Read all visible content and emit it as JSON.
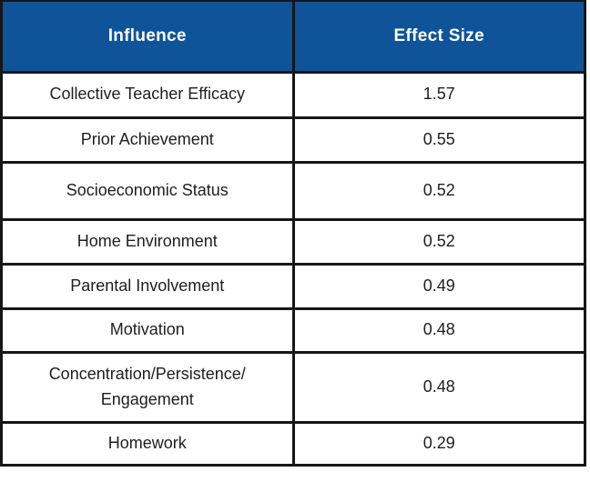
{
  "colors": {
    "header_bg": "#0F5499",
    "header_text": "#FFFFFF",
    "border": "#161616",
    "row_bg": "#FFFFFF",
    "body_text": "#1E1E1E"
  },
  "table": {
    "headers": {
      "influence": "Influence",
      "effect_size": "Effect Size"
    },
    "rows": [
      {
        "influence": "Collective Teacher Efficacy",
        "effect_size": "1.57"
      },
      {
        "influence": "Prior Achievement",
        "effect_size": "0.55"
      },
      {
        "influence": "Socioeconomic Status",
        "effect_size": "0.52"
      },
      {
        "influence": "Home Environment",
        "effect_size": "0.52"
      },
      {
        "influence": "Parental Involvement",
        "effect_size": "0.49"
      },
      {
        "influence": "Motivation",
        "effect_size": "0.48"
      },
      {
        "influence": "Concentration/Persistence/\nEngagement",
        "effect_size": "0.48"
      },
      {
        "influence": "Homework",
        "effect_size": "0.29"
      }
    ]
  },
  "chart_data": {
    "type": "table",
    "columns": [
      "Influence",
      "Effect Size"
    ],
    "rows": [
      [
        "Collective Teacher Efficacy",
        1.57
      ],
      [
        "Prior Achievement",
        0.55
      ],
      [
        "Socioeconomic Status",
        0.52
      ],
      [
        "Home Environment",
        0.52
      ],
      [
        "Parental Involvement",
        0.49
      ],
      [
        "Motivation",
        0.48
      ],
      [
        "Concentration/Persistence/Engagement",
        0.48
      ],
      [
        "Homework",
        0.29
      ]
    ]
  }
}
